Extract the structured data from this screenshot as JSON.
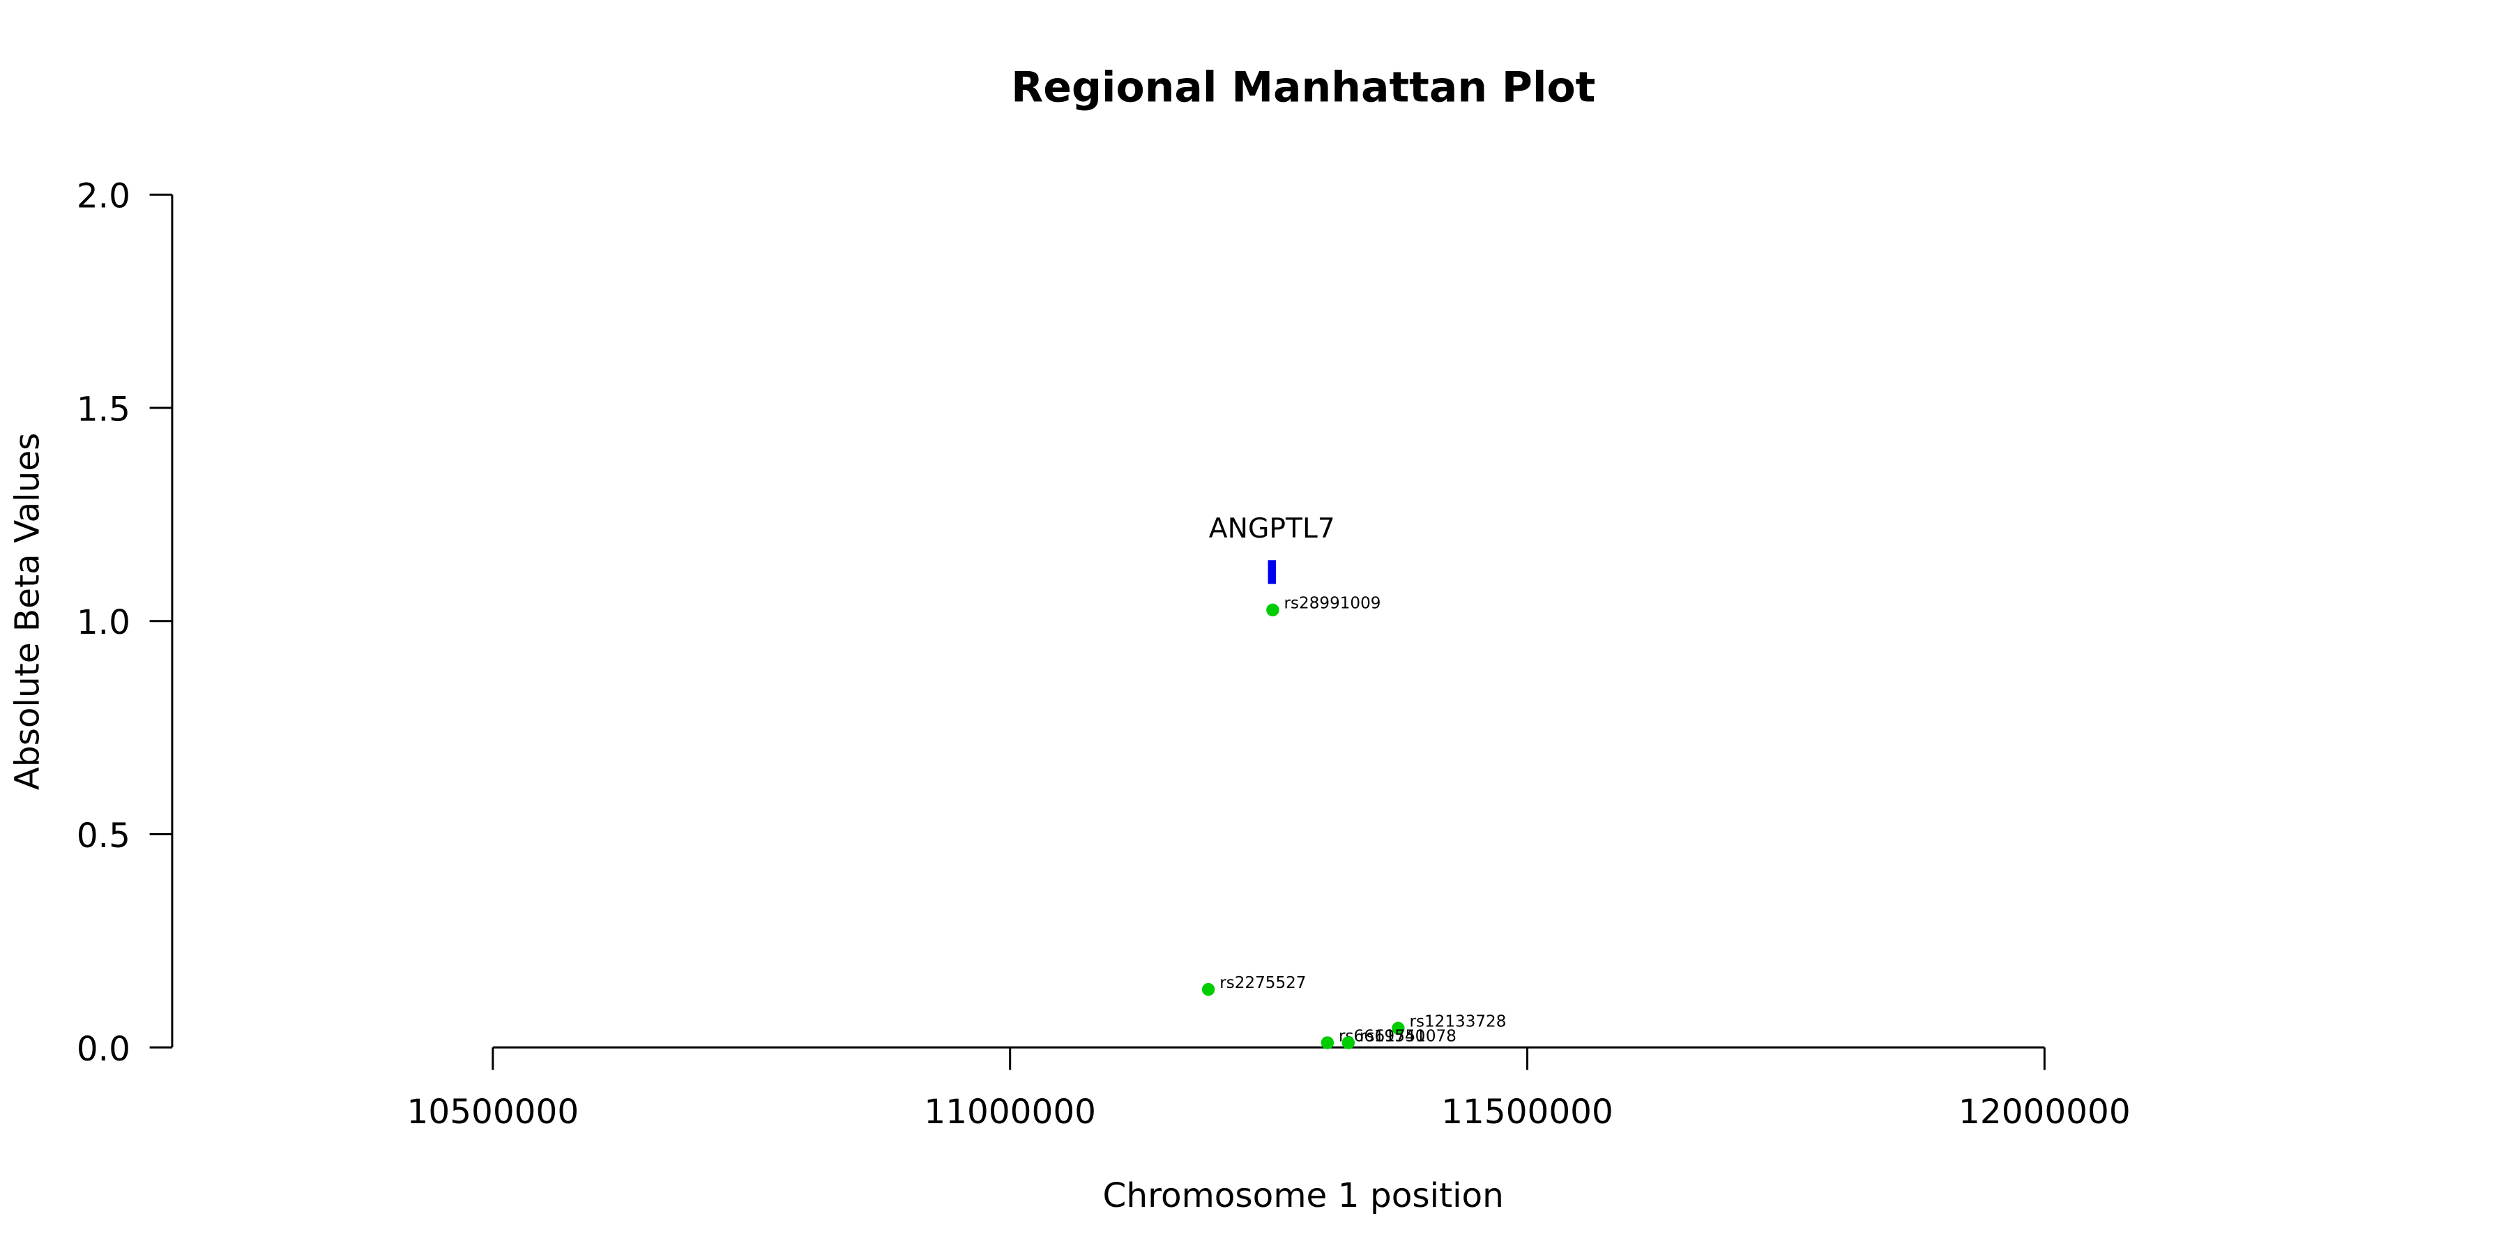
{
  "chart_data": {
    "type": "scatter",
    "title": "Regional Manhattan Plot",
    "x_label": "Chromosome 1 position",
    "y_label": "Absolute Beta Values",
    "xlim": [
      10190000,
      12310000
    ],
    "xticks": [
      10500000,
      11000000,
      11500000,
      12000000
    ],
    "ylim": [
      0,
      2
    ],
    "yticks": [
      {
        "value": 0,
        "label": "0.0"
      },
      {
        "value": 0.5,
        "label": "0.5"
      },
      {
        "value": 1,
        "label": "1.0"
      },
      {
        "value": 1.5,
        "label": "1.5"
      },
      {
        "value": 2,
        "label": "2.0"
      }
    ],
    "color": "#00cd00",
    "points": {
      "labels": [
        "rs28991009",
        "rs2275527",
        "rs12133728",
        "rs6619540",
        "rs61751078"
      ],
      "x": [
        11253900,
        11191700,
        11375200,
        11306800,
        11327000
      ],
      "values": [
        1.026,
        0.136,
        0.045,
        0.011,
        0.011
      ]
    },
    "gene": {
      "name": "ANGPTL7",
      "start": 11249300,
      "end": 11257000,
      "y_range": [
        1.087,
        1.143
      ],
      "color": "#0000ee"
    }
  }
}
